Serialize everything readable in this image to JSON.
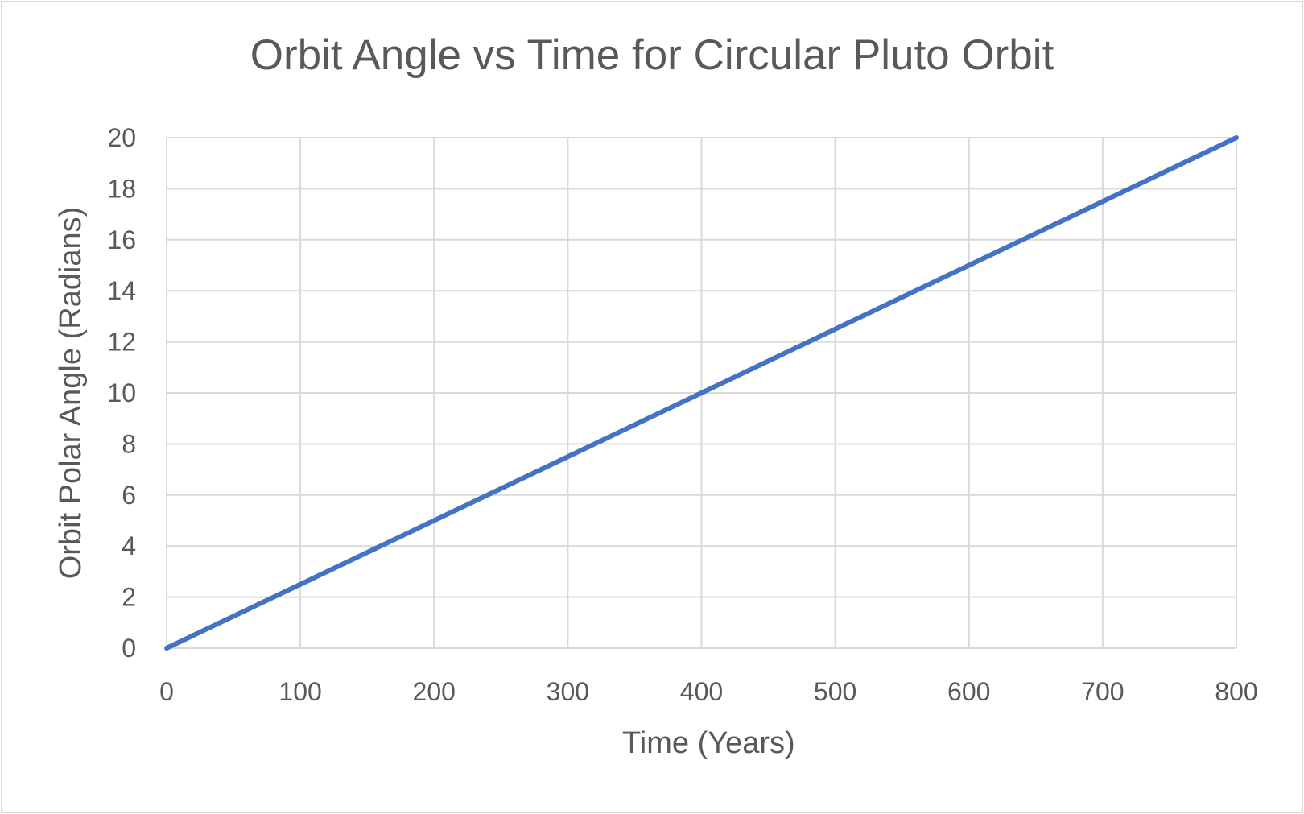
{
  "chart_data": {
    "type": "line",
    "title": "Orbit Angle vs Time for Circular Pluto Orbit",
    "xlabel": "Time (Years)",
    "ylabel": "Orbit Polar Angle (Radians)",
    "xlim": [
      0,
      800
    ],
    "ylim": [
      0,
      20
    ],
    "xticks": [
      0,
      100,
      200,
      300,
      400,
      500,
      600,
      700,
      800
    ],
    "yticks": [
      0,
      2,
      4,
      6,
      8,
      10,
      12,
      14,
      16,
      18,
      20
    ],
    "grid": true,
    "legend": "none",
    "series": [
      {
        "color": "#4472c4",
        "x": [
          0,
          100,
          200,
          300,
          400,
          500,
          600,
          700,
          800
        ],
        "y": [
          0,
          2.5,
          5,
          7.5,
          10,
          12.5,
          15,
          17.5,
          20
        ]
      }
    ]
  }
}
